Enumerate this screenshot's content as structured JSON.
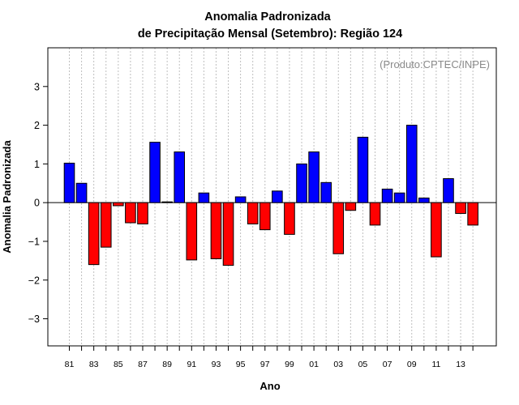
{
  "chart_data": {
    "type": "bar",
    "title": "Anomalia Padronizada",
    "subtitle": "de Precipitação Mensal (Setembro): Região 124",
    "credit": "(Produto:CPTEC/INPE)",
    "xlabel": "Ano",
    "ylabel": "Anomalia Padronizada",
    "ylim": [
      -3.7,
      4.0
    ],
    "yticks": [
      -3,
      -2,
      -1,
      0,
      1,
      2,
      3
    ],
    "years": [
      1981,
      1982,
      1983,
      1984,
      1985,
      1986,
      1987,
      1988,
      1989,
      1990,
      1991,
      1992,
      1993,
      1994,
      1995,
      1996,
      1997,
      1998,
      1999,
      2000,
      2001,
      2002,
      2003,
      2004,
      2005,
      2006,
      2007,
      2008,
      2009,
      2010,
      2011,
      2012,
      2013,
      2014
    ],
    "values": [
      1.02,
      0.5,
      -1.6,
      -1.15,
      -0.08,
      -0.52,
      -0.55,
      1.56,
      0.02,
      1.31,
      -1.48,
      0.25,
      -1.45,
      -1.62,
      0.15,
      -0.55,
      -0.7,
      0.3,
      -0.82,
      1.0,
      1.31,
      0.52,
      -1.32,
      -0.2,
      1.69,
      -0.58,
      0.35,
      0.25,
      2.0,
      0.12,
      -1.4,
      0.62,
      -0.28,
      -0.58
    ],
    "xtick_labels": [
      "81",
      "83",
      "85",
      "87",
      "89",
      "91",
      "93",
      "95",
      "97",
      "99",
      "01",
      "03",
      "05",
      "07",
      "09",
      "11",
      "13"
    ],
    "positive_color": "#0000ff",
    "negative_color": "#ff0000",
    "grid_color": "#bfbfbf",
    "grid": "vertical dotted"
  }
}
